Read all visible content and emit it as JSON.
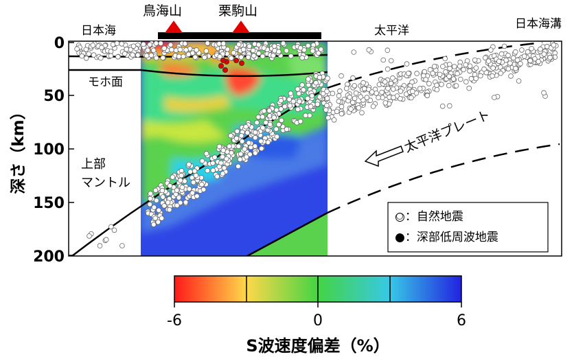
{
  "labels": {
    "volcano1": "鳥海山",
    "volcano2": "栗駒山",
    "sea_west": "日本海",
    "ocean_east": "太平洋",
    "trench": "日本海溝",
    "moho": "モホ面",
    "mantle_line1": "上部",
    "mantle_line2": "マントル",
    "plate": "太平洋プレート"
  },
  "y_axis": {
    "title": "深さ（km）",
    "ticks": [
      "0",
      "50",
      "100",
      "150",
      "200"
    ]
  },
  "legend": {
    "natural": "○：自然地震",
    "deep_low_freq": "●：深部低周波地震"
  },
  "colorbar": {
    "title": "S波速度偏差（%）",
    "ticks": [
      "-6",
      "0",
      "6"
    ],
    "colors": [
      "#ff1a1a",
      "#ffd84a",
      "#44d444",
      "#38c8e6",
      "#2222e0"
    ]
  },
  "colors": {
    "natural_quake": "#ffffff",
    "deep_quake": "#e00000",
    "volcano": "#e00000"
  }
}
